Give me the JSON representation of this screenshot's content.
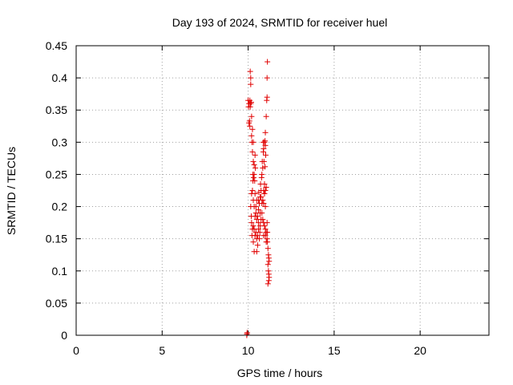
{
  "chart_data": {
    "type": "scatter",
    "title": "Day 193 of 2024, SRMTID for receiver huel",
    "xlabel": "GPS time / hours",
    "ylabel": "SRMTID / TECUs",
    "xlim": [
      0,
      24
    ],
    "ylim": [
      0,
      0.45
    ],
    "xticks": [
      0,
      5,
      10,
      15,
      20
    ],
    "xtick_labels": [
      "0",
      "5",
      "10",
      "15",
      "20"
    ],
    "yticks": [
      0,
      0.05,
      0.1,
      0.15,
      0.2,
      0.25,
      0.3,
      0.35,
      0.4,
      0.45
    ],
    "ytick_labels": [
      "0",
      "0.05",
      "0.1",
      "0.15",
      "0.2",
      "0.25",
      "0.3",
      "0.35",
      "0.4",
      "0.45"
    ],
    "grid": true,
    "marker": "+",
    "color": "#e00000",
    "points": [
      [
        9.92,
        0.0
      ],
      [
        9.93,
        0.002
      ],
      [
        9.94,
        0.004
      ],
      [
        10.0,
        0.365
      ],
      [
        10.02,
        0.355
      ],
      [
        10.05,
        0.36
      ],
      [
        10.08,
        0.333
      ],
      [
        10.1,
        0.325
      ],
      [
        10.12,
        0.41
      ],
      [
        10.15,
        0.4
      ],
      [
        10.15,
        0.39
      ],
      [
        10.1,
        0.365
      ],
      [
        10.18,
        0.362
      ],
      [
        10.05,
        0.33
      ],
      [
        10.2,
        0.31
      ],
      [
        10.22,
        0.3
      ],
      [
        10.25,
        0.285
      ],
      [
        10.3,
        0.27
      ],
      [
        10.35,
        0.265
      ],
      [
        10.28,
        0.25
      ],
      [
        10.32,
        0.245
      ],
      [
        10.38,
        0.24
      ],
      [
        10.25,
        0.225
      ],
      [
        10.4,
        0.22
      ],
      [
        10.3,
        0.21
      ],
      [
        10.35,
        0.2
      ],
      [
        10.45,
        0.19
      ],
      [
        10.4,
        0.185
      ],
      [
        10.5,
        0.18
      ],
      [
        10.2,
        0.175
      ],
      [
        10.3,
        0.17
      ],
      [
        10.35,
        0.165
      ],
      [
        10.45,
        0.16
      ],
      [
        10.4,
        0.155
      ],
      [
        10.5,
        0.15
      ],
      [
        10.3,
        0.145
      ],
      [
        10.55,
        0.14
      ],
      [
        10.35,
        0.13
      ],
      [
        10.5,
        0.13
      ],
      [
        10.6,
        0.175
      ],
      [
        10.55,
        0.185
      ],
      [
        10.6,
        0.195
      ],
      [
        10.65,
        0.205
      ],
      [
        10.7,
        0.215
      ],
      [
        10.75,
        0.225
      ],
      [
        10.72,
        0.235
      ],
      [
        10.78,
        0.245
      ],
      [
        10.8,
        0.25
      ],
      [
        10.85,
        0.26
      ],
      [
        10.82,
        0.27
      ],
      [
        10.88,
        0.285
      ],
      [
        10.9,
        0.29
      ],
      [
        10.95,
        0.3
      ],
      [
        11.0,
        0.295
      ],
      [
        10.98,
        0.302
      ],
      [
        11.02,
        0.28
      ],
      [
        10.92,
        0.27
      ],
      [
        10.9,
        0.225
      ],
      [
        10.95,
        0.22
      ],
      [
        11.0,
        0.225
      ],
      [
        10.85,
        0.21
      ],
      [
        10.9,
        0.205
      ],
      [
        11.0,
        0.2
      ],
      [
        10.8,
        0.19
      ],
      [
        10.85,
        0.18
      ],
      [
        10.9,
        0.175
      ],
      [
        10.95,
        0.17
      ],
      [
        11.0,
        0.165
      ],
      [
        11.05,
        0.16
      ],
      [
        10.9,
        0.155
      ],
      [
        11.0,
        0.155
      ],
      [
        11.1,
        0.15
      ],
      [
        11.12,
        0.145
      ],
      [
        11.15,
        0.135
      ],
      [
        11.18,
        0.125
      ],
      [
        11.2,
        0.12
      ],
      [
        11.22,
        0.115
      ],
      [
        11.15,
        0.11
      ],
      [
        11.18,
        0.1
      ],
      [
        11.2,
        0.095
      ],
      [
        11.22,
        0.09
      ],
      [
        11.2,
        0.085
      ],
      [
        11.15,
        0.08
      ],
      [
        11.05,
        0.34
      ],
      [
        11.08,
        0.365
      ],
      [
        11.1,
        0.37
      ],
      [
        11.1,
        0.4
      ],
      [
        11.12,
        0.425
      ],
      [
        11.0,
        0.315
      ],
      [
        10.98,
        0.262
      ],
      [
        10.6,
        0.21
      ],
      [
        10.62,
        0.222
      ],
      [
        10.5,
        0.21
      ],
      [
        10.45,
        0.2
      ],
      [
        10.7,
        0.19
      ],
      [
        10.4,
        0.28
      ],
      [
        10.42,
        0.26
      ],
      [
        10.28,
        0.24
      ],
      [
        10.2,
        0.22
      ],
      [
        10.15,
        0.2
      ],
      [
        10.18,
        0.185
      ],
      [
        10.22,
        0.155
      ],
      [
        10.25,
        0.165
      ],
      [
        10.55,
        0.155
      ],
      [
        10.6,
        0.165
      ],
      [
        10.65,
        0.15
      ],
      [
        10.68,
        0.16
      ],
      [
        10.7,
        0.17
      ],
      [
        10.75,
        0.18
      ],
      [
        10.8,
        0.205
      ],
      [
        10.75,
        0.215
      ],
      [
        10.15,
        0.36
      ],
      [
        10.12,
        0.355
      ],
      [
        10.2,
        0.34
      ],
      [
        10.25,
        0.32
      ],
      [
        10.3,
        0.3
      ],
      [
        10.35,
        0.25
      ],
      [
        11.05,
        0.23
      ],
      [
        11.1,
        0.175
      ],
      [
        11.12,
        0.16
      ],
      [
        11.05,
        0.145
      ],
      [
        10.95,
        0.235
      ],
      [
        10.88,
        0.3
      ]
    ]
  }
}
